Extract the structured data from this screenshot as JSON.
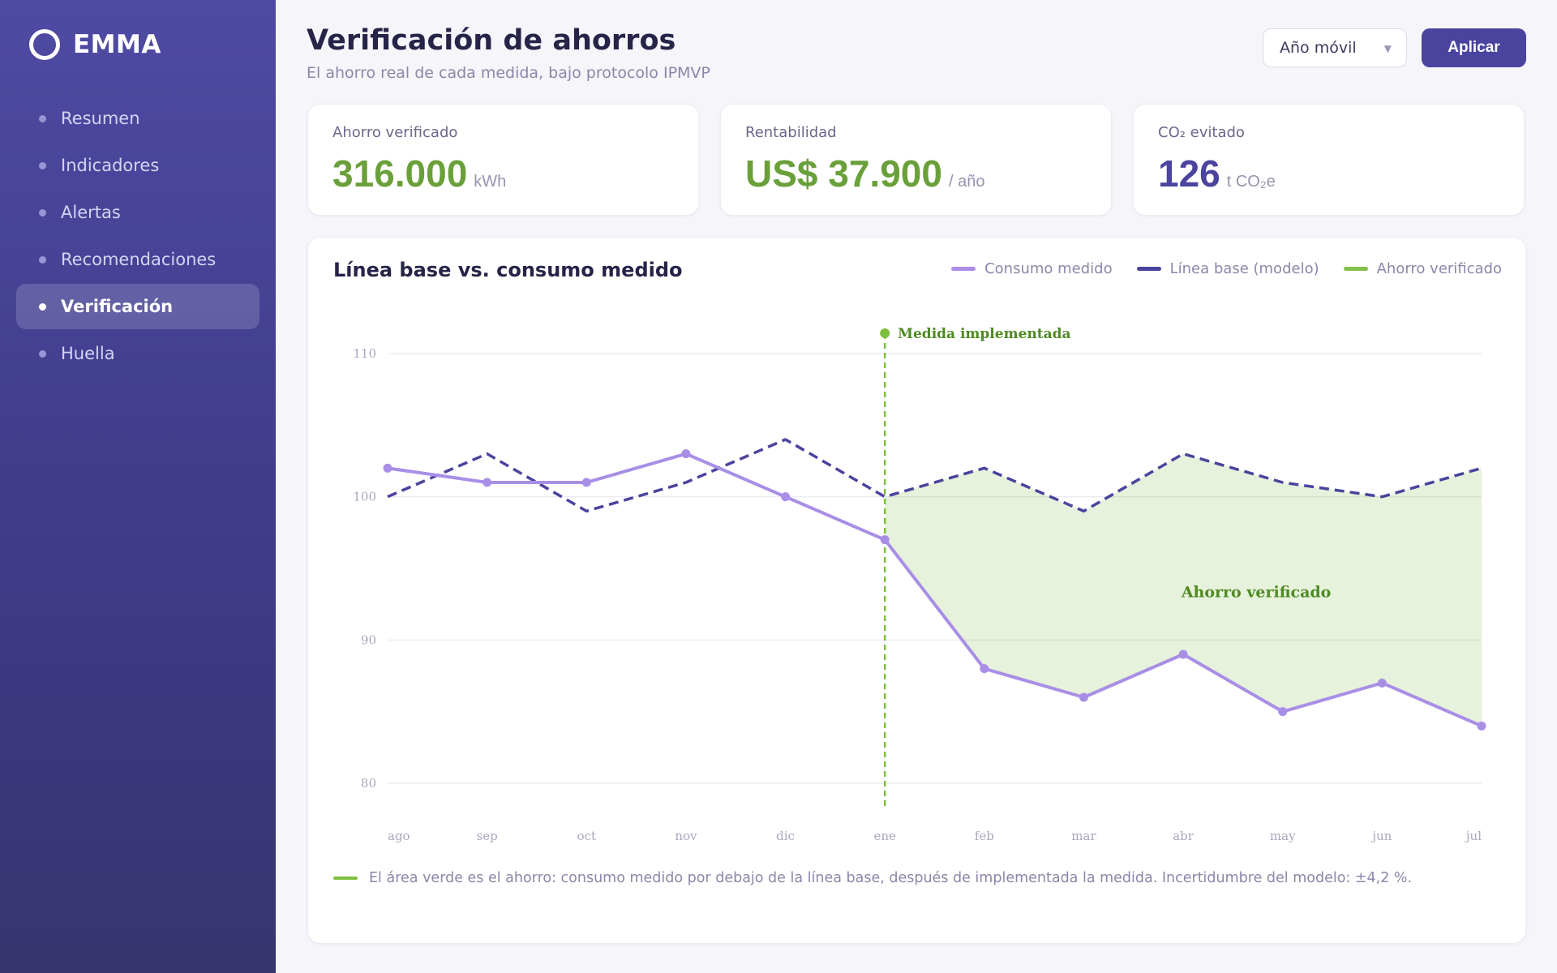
{
  "app": {
    "name": "EMMA"
  },
  "sidebar": {
    "items": [
      {
        "label": "Resumen",
        "active": false
      },
      {
        "label": "Indicadores",
        "active": false
      },
      {
        "label": "Alertas",
        "active": false
      },
      {
        "label": "Recomendaciones",
        "active": false
      },
      {
        "label": "Verificación",
        "active": true
      },
      {
        "label": "Huella",
        "active": false
      }
    ]
  },
  "header": {
    "title": "Verificación de ahorros",
    "subtitle": "El ahorro real de cada medida, bajo protocolo IPMVP",
    "period_select": "Año móvil",
    "apply_label": "Aplicar"
  },
  "kpis": [
    {
      "label": "Ahorro verificado",
      "value": "316.000",
      "unit": "kWh",
      "color": "#6aa03a"
    },
    {
      "label": "Rentabilidad",
      "value": "US$ 37.900",
      "unit": "/ año",
      "color": "#6aa03a"
    },
    {
      "label": "CO₂ evitado",
      "value": "126",
      "unit": "t CO₂e",
      "color": "#4a449e"
    }
  ],
  "chart_card": {
    "title": "Línea base vs. consumo medido",
    "legend": [
      {
        "label": "Consumo medido",
        "color": "#a98ee6"
      },
      {
        "label": "Línea base (modelo)",
        "color": "#4a449e"
      },
      {
        "label": "Ahorro verificado",
        "color": "#84c04a"
      }
    ],
    "footnote": "El área verde es el ahorro: consumo medido por debajo de la línea base, después de implementada la medida. Incertidumbre del modelo: ±4,2 %."
  },
  "chart_data": {
    "type": "line",
    "categories": [
      "ago",
      "sep",
      "oct",
      "nov",
      "dic",
      "ene",
      "feb",
      "mar",
      "abr",
      "may",
      "jun",
      "jul"
    ],
    "series": [
      {
        "name": "Consumo medido",
        "values": [
          102,
          101,
          101,
          103,
          100,
          97,
          88,
          86,
          89,
          85,
          87,
          84
        ],
        "color": "#a98ee6",
        "style": "solid",
        "markers": true
      },
      {
        "name": "Línea base (modelo)",
        "values": [
          100,
          103,
          99,
          101,
          104,
          100,
          102,
          99,
          103,
          101,
          100,
          102
        ],
        "color": "#4a449e",
        "style": "dashed",
        "markers": false
      }
    ],
    "ylim": [
      80,
      110
    ],
    "yticks": [
      80,
      90,
      100,
      110
    ],
    "grid": true,
    "legend_position": "top-right",
    "annotations": [
      {
        "type": "vline",
        "x": "ene",
        "label": "Medida implementada",
        "color": "#7fbf3f"
      },
      {
        "type": "area",
        "from": "ene",
        "to": "jul",
        "label": "Ahorro verificado",
        "color": "#84c04a"
      }
    ]
  }
}
